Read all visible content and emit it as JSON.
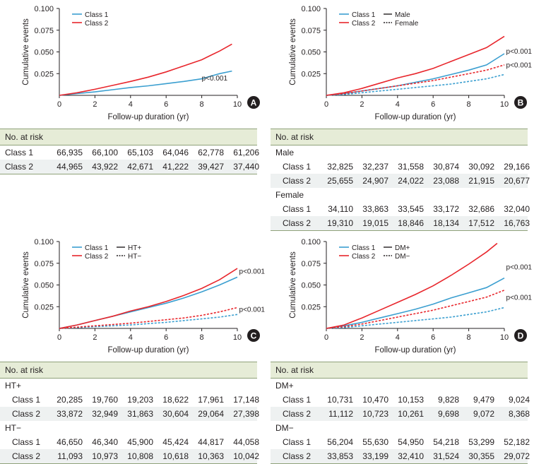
{
  "colors": {
    "class1": "#3b9fd0",
    "class2": "#e8262c",
    "axis": "#231f20",
    "header_bg": "#e6ecd7"
  },
  "chart_data": [
    {
      "panel": "A",
      "type": "line",
      "xlabel": "Follow-up duration (yr)",
      "ylabel": "Cumulative events",
      "xlim": [
        0,
        10
      ],
      "ylim": [
        0,
        0.1
      ],
      "xticks": [
        "0",
        "2",
        "4",
        "6",
        "8",
        "10"
      ],
      "yticks": [
        "0.025",
        "0.050",
        "0.075",
        "0.100"
      ],
      "legend": [
        "Class 1",
        "Class 2"
      ],
      "pvalues": [
        {
          "text": "p<0.001",
          "x": 8.0,
          "y": 0.017
        }
      ],
      "series": [
        {
          "name": "Class 1",
          "group": "class1",
          "style": "solid",
          "x": [
            0,
            1,
            2,
            3,
            4,
            5,
            6,
            7,
            8,
            8.5,
            9,
            9.7
          ],
          "y": [
            0,
            0.002,
            0.004,
            0.0065,
            0.009,
            0.011,
            0.0135,
            0.016,
            0.019,
            0.022,
            0.025,
            0.028
          ]
        },
        {
          "name": "Class 2",
          "group": "class2",
          "style": "solid",
          "x": [
            0,
            1,
            2,
            3,
            4,
            5,
            6,
            7,
            8,
            8.5,
            9,
            9.7
          ],
          "y": [
            0,
            0.003,
            0.007,
            0.0115,
            0.016,
            0.021,
            0.027,
            0.034,
            0.041,
            0.046,
            0.051,
            0.059
          ]
        }
      ]
    },
    {
      "panel": "B",
      "type": "line",
      "xlabel": "Follow-up duration (yr)",
      "ylabel": "Cumulative events",
      "xlim": [
        0,
        10
      ],
      "ylim": [
        0,
        0.1
      ],
      "xticks": [
        "0",
        "2",
        "4",
        "6",
        "8",
        "10"
      ],
      "yticks": [
        "0.025",
        "0.050",
        "0.075",
        "0.100"
      ],
      "legend": [
        "Class 1",
        "Class 2",
        "Male",
        "Female"
      ],
      "pvalues": [
        {
          "text": "p<0.001",
          "x": 10.1,
          "y": 0.048
        },
        {
          "text": "p<0.001",
          "x": 10.1,
          "y": 0.032
        }
      ],
      "series": [
        {
          "name": "Class 1 Male",
          "group": "class1",
          "style": "solid",
          "x": [
            0,
            1,
            2,
            3,
            4,
            5,
            6,
            7,
            8,
            9,
            10
          ],
          "y": [
            0,
            0.002,
            0.005,
            0.008,
            0.011,
            0.015,
            0.019,
            0.024,
            0.029,
            0.035,
            0.048
          ]
        },
        {
          "name": "Class 2 Male",
          "group": "class2",
          "style": "solid",
          "x": [
            0,
            1,
            2,
            3,
            4,
            5,
            6,
            7,
            8,
            9,
            10
          ],
          "y": [
            0,
            0.003,
            0.008,
            0.014,
            0.02,
            0.025,
            0.031,
            0.039,
            0.047,
            0.055,
            0.068
          ]
        },
        {
          "name": "Class 1 Female",
          "group": "class1",
          "style": "dashed",
          "x": [
            0,
            1,
            2,
            3,
            4,
            5,
            6,
            7,
            8,
            9,
            10
          ],
          "y": [
            0,
            0.001,
            0.003,
            0.005,
            0.007,
            0.009,
            0.011,
            0.013,
            0.016,
            0.019,
            0.024
          ]
        },
        {
          "name": "Class 2 Female",
          "group": "class2",
          "style": "dashed",
          "x": [
            0,
            1,
            2,
            3,
            4,
            5,
            6,
            7,
            8,
            9,
            10
          ],
          "y": [
            0,
            0.002,
            0.005,
            0.008,
            0.011,
            0.014,
            0.017,
            0.021,
            0.025,
            0.029,
            0.035
          ]
        }
      ]
    },
    {
      "panel": "C",
      "type": "line",
      "xlabel": "Follow-up duration (yr)",
      "ylabel": "Cumulative events",
      "xlim": [
        0,
        10
      ],
      "ylim": [
        0,
        0.1
      ],
      "xticks": [
        "0",
        "2",
        "4",
        "6",
        "8",
        "10"
      ],
      "yticks": [
        "0.025",
        "0.050",
        "0.075",
        "0.100"
      ],
      "legend": [
        "Class 1",
        "Class 2",
        "HT+",
        "HT−"
      ],
      "pvalues": [
        {
          "text": "p<0.001",
          "x": 10.1,
          "y": 0.063
        },
        {
          "text": "p<0.001",
          "x": 10.1,
          "y": 0.019
        }
      ],
      "series": [
        {
          "name": "Class 1 HT+",
          "group": "class1",
          "style": "solid",
          "x": [
            0,
            1,
            2,
            3,
            4,
            5,
            6,
            7,
            8,
            9,
            10
          ],
          "y": [
            0,
            0.004,
            0.009,
            0.014,
            0.019,
            0.024,
            0.029,
            0.035,
            0.042,
            0.05,
            0.059
          ]
        },
        {
          "name": "Class 2 HT+",
          "group": "class2",
          "style": "solid",
          "x": [
            0,
            1,
            2,
            3,
            4,
            5,
            6,
            7,
            8,
            9,
            10
          ],
          "y": [
            0,
            0.004,
            0.009,
            0.014,
            0.02,
            0.025,
            0.031,
            0.038,
            0.046,
            0.056,
            0.069
          ]
        },
        {
          "name": "Class 1 HT−",
          "group": "class1",
          "style": "dashed",
          "x": [
            0,
            1,
            2,
            3,
            4,
            5,
            6,
            7,
            8,
            9,
            10
          ],
          "y": [
            0,
            0.001,
            0.002,
            0.003,
            0.004,
            0.0055,
            0.007,
            0.009,
            0.011,
            0.013,
            0.016
          ]
        },
        {
          "name": "Class 2 HT−",
          "group": "class2",
          "style": "dashed",
          "x": [
            0,
            1,
            2,
            3,
            4,
            5,
            6,
            7,
            8,
            9,
            10
          ],
          "y": [
            0,
            0.0015,
            0.003,
            0.0045,
            0.006,
            0.008,
            0.01,
            0.012,
            0.015,
            0.019,
            0.024
          ]
        }
      ]
    },
    {
      "panel": "D",
      "type": "line",
      "xlabel": "Follow-up duration (yr)",
      "ylabel": "Cumulative events",
      "xlim": [
        0,
        10
      ],
      "ylim": [
        0,
        0.1
      ],
      "xticks": [
        "0",
        "2",
        "4",
        "6",
        "8",
        "10"
      ],
      "yticks": [
        "0.025",
        "0.050",
        "0.075",
        "0.100"
      ],
      "legend": [
        "Class 1",
        "Class 2",
        "DM+",
        "DM−"
      ],
      "pvalues": [
        {
          "text": "p<0.001",
          "x": 10.1,
          "y": 0.068
        },
        {
          "text": "p<0.001",
          "x": 10.1,
          "y": 0.033
        }
      ],
      "series": [
        {
          "name": "Class 1 DM+",
          "group": "class1",
          "style": "solid",
          "x": [
            0,
            1,
            2,
            3,
            4,
            5,
            6,
            7,
            8,
            9,
            10
          ],
          "y": [
            0,
            0.003,
            0.007,
            0.012,
            0.017,
            0.022,
            0.028,
            0.035,
            0.041,
            0.047,
            0.058
          ]
        },
        {
          "name": "Class 2 DM+",
          "group": "class2",
          "style": "solid",
          "x": [
            0,
            1,
            2,
            3,
            4,
            5,
            6,
            7,
            8,
            9,
            9.6
          ],
          "y": [
            0,
            0.004,
            0.012,
            0.021,
            0.03,
            0.039,
            0.049,
            0.061,
            0.074,
            0.088,
            0.098
          ]
        },
        {
          "name": "Class 1 DM−",
          "group": "class1",
          "style": "dashed",
          "x": [
            0,
            1,
            2,
            3,
            4,
            5,
            6,
            7,
            8,
            9,
            10
          ],
          "y": [
            0,
            0.001,
            0.003,
            0.005,
            0.007,
            0.009,
            0.011,
            0.013,
            0.016,
            0.019,
            0.024
          ]
        },
        {
          "name": "Class 2 DM−",
          "group": "class2",
          "style": "dashed",
          "x": [
            0,
            1,
            2,
            3,
            4,
            5,
            6,
            7,
            8,
            9,
            10
          ],
          "y": [
            0,
            0.002,
            0.005,
            0.009,
            0.013,
            0.017,
            0.021,
            0.026,
            0.031,
            0.036,
            0.044
          ]
        }
      ]
    }
  ],
  "tables": {
    "A": {
      "header": "No. at risk",
      "groups": [
        {
          "label": "",
          "rows": [
            {
              "label": "Class 1",
              "values": [
                "66,935",
                "66,100",
                "65,103",
                "64,046",
                "62,778",
                "61,206"
              ]
            },
            {
              "label": "Class 2",
              "values": [
                "44,965",
                "43,922",
                "42,671",
                "41,222",
                "39,427",
                "37,440"
              ]
            }
          ]
        }
      ]
    },
    "B": {
      "header": "No. at risk",
      "groups": [
        {
          "label": "Male",
          "rows": [
            {
              "label": "Class 1",
              "values": [
                "32,825",
                "32,237",
                "31,558",
                "30,874",
                "30,092",
                "29,166"
              ]
            },
            {
              "label": "Class 2",
              "values": [
                "25,655",
                "24,907",
                "24,022",
                "23,088",
                "21,915",
                "20,677"
              ]
            }
          ]
        },
        {
          "label": "Female",
          "rows": [
            {
              "label": "Class 1",
              "values": [
                "34,110",
                "33,863",
                "33,545",
                "33,172",
                "32,686",
                "32,040"
              ]
            },
            {
              "label": "Class 2",
              "values": [
                "19,310",
                "19,015",
                "18,846",
                "18,134",
                "17,512",
                "16,763"
              ]
            }
          ]
        }
      ]
    },
    "C": {
      "header": "No. at risk",
      "groups": [
        {
          "label": "HT+",
          "rows": [
            {
              "label": "Class 1",
              "values": [
                "20,285",
                "19,760",
                "19,203",
                "18,622",
                "17,961",
                "17,148"
              ]
            },
            {
              "label": "Class 2",
              "values": [
                "33,872",
                "32,949",
                "31,863",
                "30,604",
                "29,064",
                "27,398"
              ]
            }
          ]
        },
        {
          "label": "HT−",
          "rows": [
            {
              "label": "Class 1",
              "values": [
                "46,650",
                "46,340",
                "45,900",
                "45,424",
                "44,817",
                "44,058"
              ]
            },
            {
              "label": "Class 2",
              "values": [
                "11,093",
                "10,973",
                "10,808",
                "10,618",
                "10,363",
                "10,042"
              ]
            }
          ]
        }
      ]
    },
    "D": {
      "header": "No. at risk",
      "groups": [
        {
          "label": "DM+",
          "rows": [
            {
              "label": "Class 1",
              "values": [
                "10,731",
                "10,470",
                "10,153",
                "9,828",
                "9,479",
                "9,024"
              ]
            },
            {
              "label": "Class 2",
              "values": [
                "11,112",
                "10,723",
                "10,261",
                "9,698",
                "9,072",
                "8,368"
              ]
            }
          ]
        },
        {
          "label": "DM−",
          "rows": [
            {
              "label": "Class 1",
              "values": [
                "56,204",
                "55,630",
                "54,950",
                "54,218",
                "53,299",
                "52,182"
              ]
            },
            {
              "label": "Class 2",
              "values": [
                "33,853",
                "33,199",
                "32,410",
                "31,524",
                "30,355",
                "29,072"
              ]
            }
          ]
        }
      ]
    }
  }
}
